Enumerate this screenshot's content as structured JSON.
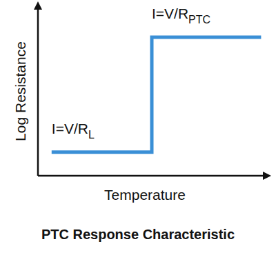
{
  "chart_data": {
    "type": "line",
    "title": "PTC Response Characteristic",
    "x_label": "Temperature",
    "y_label": "Log Resistance",
    "x": [
      6,
      50,
      50,
      98
    ],
    "values": [
      14,
      14,
      82,
      82
    ],
    "color": "#3a8fd6",
    "xlim": [
      0,
      100
    ],
    "ylim": [
      0,
      100
    ],
    "tick_labels": false,
    "grid": false,
    "annotations": [
      {
        "text": "I=V/R",
        "subscript": "L"
      },
      {
        "text": "I=V/R",
        "subscript": "PTC"
      }
    ]
  }
}
